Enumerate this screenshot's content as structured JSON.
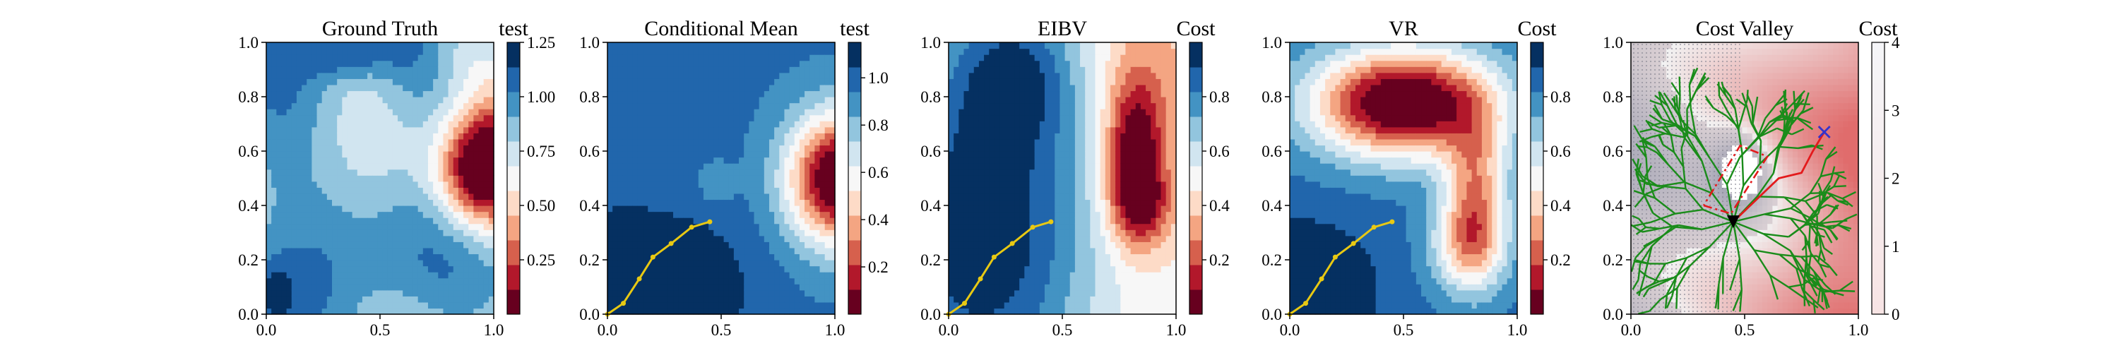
{
  "figure": {
    "background": "#ffffff"
  },
  "chart_data": [
    {
      "type": "heatmap",
      "title": "Ground Truth",
      "colorbar_label": "test",
      "colormap": "RdBu",
      "xlim": [
        0,
        1
      ],
      "ylim": [
        0,
        1
      ],
      "xticks": [
        "0.0",
        "0.5",
        "1.0"
      ],
      "yticks": [
        "0.0",
        "0.2",
        "0.4",
        "0.6",
        "0.8",
        "1.0"
      ],
      "colorbar_range": [
        0.0,
        1.25
      ],
      "colorbar_ticks": [
        "0.25",
        "0.50",
        "0.75",
        "1.00",
        "1.25"
      ],
      "colorbar_tick_values": [
        0.25,
        0.5,
        0.75,
        1.0,
        1.25
      ],
      "field_features": [
        {
          "kind": "hotspot",
          "x": 1.0,
          "y": 0.55,
          "min_value": 0.05
        },
        {
          "kind": "high",
          "x": 0.35,
          "y": 0.95,
          "max_value": 1.25
        }
      ],
      "path": []
    },
    {
      "type": "heatmap",
      "title": "Conditional Mean",
      "colorbar_label": "test",
      "colormap": "RdBu",
      "xlim": [
        0,
        1
      ],
      "ylim": [
        0,
        1
      ],
      "xticks": [
        "0.0",
        "0.5",
        "1.0"
      ],
      "yticks": [
        "0.0",
        "0.2",
        "0.4",
        "0.6",
        "0.8",
        "1.0"
      ],
      "colorbar_range": [
        0.0,
        1.15
      ],
      "colorbar_ticks": [
        "0.2",
        "0.4",
        "0.6",
        "0.8",
        "1.0"
      ],
      "colorbar_tick_values": [
        0.2,
        0.4,
        0.6,
        0.8,
        1.0
      ],
      "field_features": [
        {
          "kind": "hotspot",
          "x": 1.0,
          "y": 0.5,
          "min_value": 0.05
        },
        {
          "kind": "high",
          "x": 0.3,
          "y": 0.2,
          "max_value": 1.15
        }
      ],
      "path": [
        [
          0.0,
          0.0
        ],
        [
          0.07,
          0.04
        ],
        [
          0.14,
          0.13
        ],
        [
          0.2,
          0.21
        ],
        [
          0.28,
          0.26
        ],
        [
          0.37,
          0.32
        ],
        [
          0.45,
          0.34
        ]
      ]
    },
    {
      "type": "heatmap",
      "title": "EIBV",
      "colorbar_label": "Cost",
      "colormap": "RdBu",
      "xlim": [
        0,
        1
      ],
      "ylim": [
        0,
        1
      ],
      "xticks": [
        "0.0",
        "0.5",
        "1.0"
      ],
      "yticks": [
        "0.0",
        "0.2",
        "0.4",
        "0.6",
        "0.8",
        "1.0"
      ],
      "colorbar_range": [
        0.0,
        1.0
      ],
      "colorbar_ticks": [
        "0.2",
        "0.4",
        "0.6",
        "0.8"
      ],
      "colorbar_tick_values": [
        0.2,
        0.4,
        0.6,
        0.8
      ],
      "field_features": [
        {
          "kind": "hotspot",
          "x": 0.82,
          "y": 0.58,
          "min_value": 0.0
        },
        {
          "kind": "high",
          "x": 0.2,
          "y": 0.3,
          "max_value": 1.0
        }
      ],
      "path": [
        [
          0.0,
          0.0
        ],
        [
          0.07,
          0.04
        ],
        [
          0.14,
          0.13
        ],
        [
          0.2,
          0.21
        ],
        [
          0.28,
          0.26
        ],
        [
          0.37,
          0.32
        ],
        [
          0.45,
          0.34
        ]
      ]
    },
    {
      "type": "heatmap",
      "title": "VR",
      "colorbar_label": "Cost",
      "colormap": "RdBu",
      "xlim": [
        0,
        1
      ],
      "ylim": [
        0,
        1
      ],
      "xticks": [
        "0.0",
        "0.5",
        "1.0"
      ],
      "yticks": [
        "0.0",
        "0.2",
        "0.4",
        "0.6",
        "0.8",
        "1.0"
      ],
      "colorbar_range": [
        0.0,
        1.0
      ],
      "colorbar_ticks": [
        "0.2",
        "0.4",
        "0.6",
        "0.8"
      ],
      "colorbar_tick_values": [
        0.2,
        0.4,
        0.6,
        0.8
      ],
      "field_features": [
        {
          "kind": "hotspot",
          "x": 0.45,
          "y": 0.78,
          "min_value": 0.0
        },
        {
          "kind": "high",
          "x": 0.05,
          "y": 0.1,
          "max_value": 1.0
        }
      ],
      "path": [
        [
          0.0,
          0.0
        ],
        [
          0.07,
          0.04
        ],
        [
          0.14,
          0.13
        ],
        [
          0.2,
          0.21
        ],
        [
          0.28,
          0.26
        ],
        [
          0.37,
          0.32
        ],
        [
          0.45,
          0.34
        ]
      ]
    },
    {
      "type": "heatmap",
      "title": "Cost Valley",
      "colorbar_label": "Cost",
      "colormap": "grey-white-red",
      "xlim": [
        0,
        1
      ],
      "ylim": [
        0,
        1
      ],
      "xticks": [
        "0.0",
        "0.5",
        "1.0"
      ],
      "yticks": [
        "0.0",
        "0.2",
        "0.4",
        "0.6",
        "0.8",
        "1.0"
      ],
      "colorbar_range": [
        0,
        4
      ],
      "colorbar_ticks": [
        "0",
        "1",
        "2",
        "3",
        "4"
      ],
      "colorbar_tick_values": [
        0,
        1,
        2,
        3,
        4
      ],
      "overlays": {
        "tree_color": "#1a8c1a",
        "planned_path_color": "#e31a1c",
        "current_location": [
          0.45,
          0.34
        ],
        "current_marker": "downward-triangle",
        "target_location": [
          0.85,
          0.67
        ],
        "target_marker": "x",
        "target_color": "#3333cc",
        "polygon": [
          [
            0.32,
            0.4
          ],
          [
            0.44,
            0.37
          ],
          [
            0.6,
            0.58
          ],
          [
            0.48,
            0.62
          ],
          [
            0.32,
            0.4
          ]
        ]
      },
      "path": []
    }
  ]
}
